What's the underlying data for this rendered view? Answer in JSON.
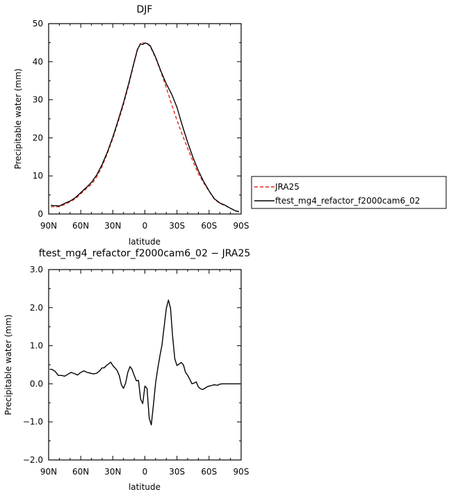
{
  "chart_data": [
    {
      "type": "line",
      "title": "DJF",
      "xlabel": "latitude",
      "ylabel": "Precipitable water (mm)",
      "xlim": [
        90,
        -90
      ],
      "ylim": [
        0,
        50
      ],
      "x_ticks": [
        {
          "value": 90,
          "label": "90N"
        },
        {
          "value": 60,
          "label": "60N"
        },
        {
          "value": 30,
          "label": "30N"
        },
        {
          "value": 0,
          "label": "0"
        },
        {
          "value": -30,
          "label": "30S"
        },
        {
          "value": -60,
          "label": "60S"
        },
        {
          "value": -90,
          "label": "90S"
        }
      ],
      "y_ticks": [
        0,
        10,
        20,
        30,
        40,
        50
      ],
      "legend_position": "right",
      "series": [
        {
          "name": "JRA25",
          "color": "#e8291c",
          "dash": "dashed",
          "x": [
            88,
            85,
            80,
            75,
            70,
            65,
            60,
            55,
            50,
            45,
            40,
            35,
            30,
            25,
            20,
            15,
            10,
            7,
            4,
            2,
            0,
            -2,
            -5,
            -10,
            -15,
            -20,
            -25,
            -30,
            -35,
            -40,
            -45,
            -50,
            -55,
            -60,
            -65,
            -70,
            -75,
            -80,
            -85,
            -88
          ],
          "y": [
            1.9,
            1.9,
            1.9,
            2.5,
            3.2,
            4.0,
            5.3,
            6.6,
            7.8,
            9.8,
            12.5,
            16.0,
            19.8,
            24.2,
            28.8,
            34.0,
            39.8,
            43.0,
            44.9,
            45.0,
            44.8,
            44.8,
            44.0,
            41.0,
            37.3,
            33.2,
            28.8,
            24.6,
            20.8,
            17.2,
            13.8,
            10.6,
            8.2,
            6.0,
            3.9,
            2.8,
            2.2,
            1.5,
            0.8,
            0.6
          ]
        },
        {
          "name": "ftest_mg4_refactor_f2000cam6_02",
          "color": "#000000",
          "dash": "solid",
          "x": [
            88,
            85,
            80,
            75,
            70,
            65,
            60,
            55,
            50,
            45,
            40,
            35,
            30,
            25,
            20,
            15,
            10,
            7,
            4,
            2,
            0,
            -2,
            -5,
            -10,
            -15,
            -20,
            -25,
            -30,
            -35,
            -40,
            -45,
            -50,
            -55,
            -60,
            -65,
            -70,
            -75,
            -80,
            -85,
            -88
          ],
          "y": [
            2.3,
            2.2,
            2.1,
            2.8,
            3.4,
            4.3,
            5.6,
            6.9,
            8.3,
            10.3,
            13.0,
            16.3,
            20.2,
            24.6,
            29.2,
            34.4,
            40.0,
            43.2,
            44.7,
            44.5,
            44.9,
            44.8,
            44.2,
            41.2,
            37.5,
            34.2,
            31.5,
            28.0,
            23.2,
            18.8,
            14.8,
            11.4,
            8.5,
            6.1,
            4.0,
            2.9,
            2.3,
            1.5,
            0.8,
            0.6
          ]
        }
      ]
    },
    {
      "type": "line",
      "title": "ftest_mg4_refactor_f2000cam6_02 − JRA25",
      "xlabel": "latitude",
      "ylabel": "Precipitable water (mm)",
      "xlim": [
        90,
        -90
      ],
      "ylim": [
        -2.0,
        3.0
      ],
      "x_ticks": [
        {
          "value": 90,
          "label": "90N"
        },
        {
          "value": 60,
          "label": "60N"
        },
        {
          "value": 30,
          "label": "30N"
        },
        {
          "value": 0,
          "label": "0"
        },
        {
          "value": -30,
          "label": "30S"
        },
        {
          "value": -60,
          "label": "60S"
        },
        {
          "value": -90,
          "label": "90S"
        }
      ],
      "y_ticks": [
        {
          "value": -2,
          "label": "−2.0"
        },
        {
          "value": -1,
          "label": "−1.0"
        },
        {
          "value": 0,
          "label": "0.0"
        },
        {
          "value": 1,
          "label": "1.0"
        },
        {
          "value": 2,
          "label": "2.0"
        },
        {
          "value": 3,
          "label": "3.0"
        }
      ],
      "series": [
        {
          "color": "#000000",
          "dash": "solid",
          "x": [
            89,
            87,
            84,
            81,
            78,
            75,
            72,
            69,
            66,
            63,
            60,
            57,
            54,
            51,
            48,
            45,
            42,
            40,
            38,
            36,
            34,
            32,
            30,
            28,
            26,
            24,
            22,
            20,
            18,
            16,
            14,
            12,
            10,
            8,
            6,
            4,
            2,
            0,
            -2,
            -4,
            -6,
            -8,
            -10,
            -12,
            -14,
            -16,
            -18,
            -20,
            -22,
            -24,
            -26,
            -28,
            -30,
            -32,
            -34,
            -36,
            -38,
            -40,
            -42,
            -44,
            -46,
            -48,
            -50,
            -52,
            -54,
            -56,
            -58,
            -60,
            -62,
            -64,
            -66,
            -68,
            -70,
            -72,
            -75,
            -78,
            -81,
            -84,
            -87,
            -89
          ],
          "y": [
            0.38,
            0.38,
            0.33,
            0.22,
            0.22,
            0.2,
            0.25,
            0.3,
            0.27,
            0.23,
            0.3,
            0.34,
            0.3,
            0.28,
            0.26,
            0.28,
            0.35,
            0.42,
            0.42,
            0.48,
            0.52,
            0.57,
            0.48,
            0.42,
            0.35,
            0.22,
            -0.02,
            -0.12,
            0.02,
            0.3,
            0.45,
            0.38,
            0.22,
            0.08,
            0.09,
            -0.4,
            -0.52,
            -0.06,
            -0.12,
            -0.9,
            -1.08,
            -0.55,
            0.02,
            0.4,
            0.72,
            1.02,
            1.5,
            1.98,
            2.2,
            1.98,
            1.22,
            0.65,
            0.48,
            0.52,
            0.56,
            0.5,
            0.3,
            0.22,
            0.12,
            0.0,
            0.02,
            0.05,
            -0.08,
            -0.13,
            -0.15,
            -0.12,
            -0.08,
            -0.06,
            -0.05,
            -0.03,
            -0.03,
            -0.04,
            -0.01,
            0.0,
            0.0,
            0.0,
            0.0,
            0.0,
            0.0,
            0.0
          ]
        }
      ]
    }
  ]
}
